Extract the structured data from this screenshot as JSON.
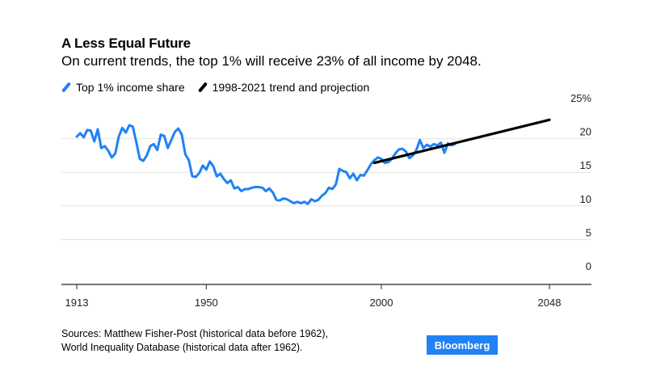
{
  "header": {
    "title": "A Less Equal Future",
    "subtitle": "On current trends, the top 1% will receive 23% of all income by 2048."
  },
  "legend": [
    {
      "label": "Top 1% income share",
      "color": "#1f82f5"
    },
    {
      "label": "1998-2021 trend and projection",
      "color": "#000000"
    }
  ],
  "footer": {
    "source_line1": "Sources: Matthew Fisher-Post (historical data before 1962),",
    "source_line2": "World Inequality Database (historical data after 1962).",
    "brand": "Bloomberg"
  },
  "chart_data": {
    "type": "line",
    "title": "A Less Equal Future",
    "subtitle": "On current trends, the top 1% will receive 23% of all income by 2048.",
    "xlabel": "",
    "ylabel": "",
    "xlim": [
      1913,
      2048
    ],
    "ylim": [
      0,
      25
    ],
    "x_ticks": [
      "1913",
      "1950",
      "2000",
      "2048"
    ],
    "y_ticks": [
      "0",
      "5",
      "10",
      "15",
      "20",
      "25%"
    ],
    "grid": true,
    "legend_position": "top-left",
    "series": [
      {
        "name": "Top 1% income share",
        "color": "#1f82f5",
        "x": [
          1913,
          1914,
          1915,
          1916,
          1917,
          1918,
          1919,
          1920,
          1921,
          1922,
          1923,
          1924,
          1925,
          1926,
          1927,
          1928,
          1929,
          1930,
          1931,
          1932,
          1933,
          1934,
          1935,
          1936,
          1937,
          1938,
          1939,
          1940,
          1941,
          1942,
          1943,
          1944,
          1945,
          1946,
          1947,
          1948,
          1949,
          1950,
          1951,
          1952,
          1953,
          1954,
          1955,
          1956,
          1957,
          1958,
          1959,
          1960,
          1961,
          1962,
          1963,
          1964,
          1965,
          1966,
          1967,
          1968,
          1969,
          1970,
          1971,
          1972,
          1973,
          1974,
          1975,
          1976,
          1977,
          1978,
          1979,
          1980,
          1981,
          1982,
          1983,
          1984,
          1985,
          1986,
          1987,
          1988,
          1989,
          1990,
          1991,
          1992,
          1993,
          1994,
          1995,
          1996,
          1997,
          1998,
          1999,
          2000,
          2001,
          2002,
          2003,
          2004,
          2005,
          2006,
          2007,
          2008,
          2009,
          2010,
          2011,
          2012,
          2013,
          2014,
          2015,
          2016,
          2017,
          2018,
          2019,
          2020,
          2021
        ],
        "values": [
          20.3,
          20.8,
          20.2,
          21.3,
          21.2,
          19.6,
          21.4,
          18.6,
          18.9,
          18.2,
          17.2,
          17.8,
          20.3,
          21.6,
          20.9,
          22.0,
          21.8,
          19.5,
          17.0,
          16.7,
          17.5,
          18.9,
          19.2,
          18.3,
          20.6,
          20.4,
          18.6,
          19.8,
          21.0,
          21.5,
          20.6,
          17.7,
          16.8,
          14.4,
          14.3,
          14.9,
          16.0,
          15.4,
          16.6,
          15.9,
          14.4,
          14.8,
          14.0,
          13.4,
          13.8,
          12.6,
          12.8,
          12.2,
          12.5,
          12.5,
          12.7,
          12.8,
          12.8,
          12.7,
          12.2,
          12.6,
          12.0,
          10.9,
          10.8,
          11.1,
          11.0,
          10.7,
          10.4,
          10.6,
          10.4,
          10.6,
          10.3,
          11.0,
          10.7,
          10.9,
          11.5,
          11.9,
          12.7,
          12.5,
          13.2,
          15.5,
          15.2,
          15.0,
          14.1,
          14.8,
          13.8,
          14.6,
          14.5,
          15.3,
          16.2,
          16.8,
          17.2,
          17.0,
          16.4,
          16.5,
          17.0,
          17.8,
          18.4,
          18.5,
          18.1,
          17.1,
          17.5,
          18.3,
          19.8,
          18.6,
          19.1,
          18.8,
          19.2,
          19.0,
          19.4,
          17.9,
          19.3,
          19.0,
          19.2
        ]
      },
      {
        "name": "1998-2021 trend and projection",
        "color": "#000000",
        "x": [
          1998,
          2048
        ],
        "values": [
          16.4,
          22.8
        ]
      }
    ]
  }
}
